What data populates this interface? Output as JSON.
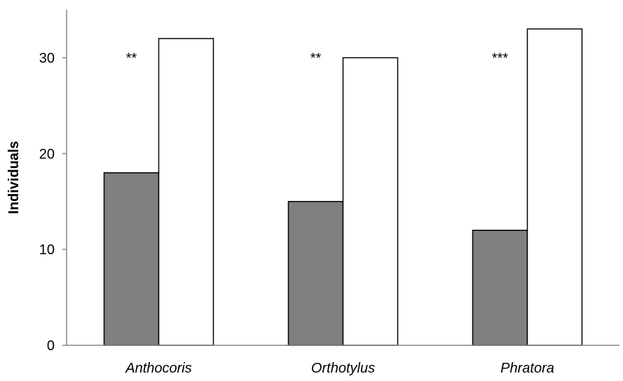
{
  "chart_data": {
    "type": "bar",
    "title": "",
    "xlabel": "",
    "ylabel": "Individuals",
    "ylim": [
      0,
      35
    ],
    "yticks": [
      0,
      10,
      20,
      30
    ],
    "grid": false,
    "legend": "none",
    "categories": [
      "Anthocoris",
      "Orthotylus",
      "Phratora"
    ],
    "series": [
      {
        "values": [
          18,
          15,
          12
        ],
        "color": "#808080"
      },
      {
        "values": [
          32,
          30,
          33
        ],
        "color": "#ffffff"
      }
    ],
    "annotations": [
      "**",
      "**",
      "***"
    ]
  }
}
